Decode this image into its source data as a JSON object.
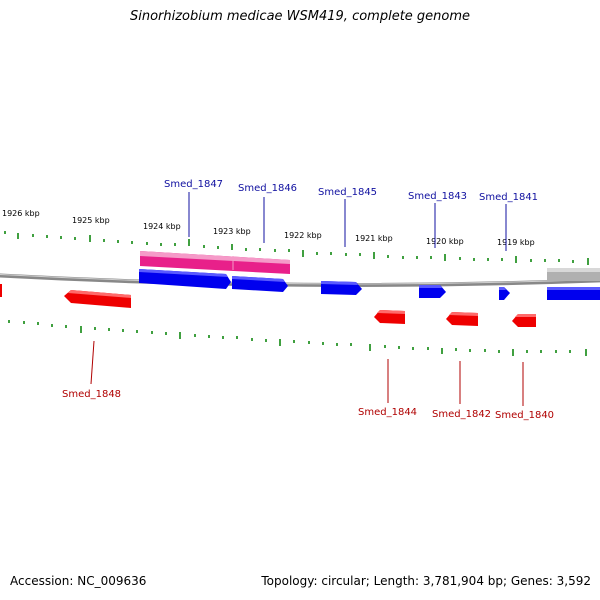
{
  "title": "Sinorhizobium medicae WSM419, complete genome",
  "footer": {
    "accession": "Accession: NC_009636",
    "summary": "Topology: circular; Length: 3,781,904 bp; Genes: 3,592"
  },
  "colors": {
    "forward_gene": "#0000ee",
    "reverse_gene": "#ee0000",
    "highlight": "#ee2288",
    "backbone": "#888888",
    "tick": "#008000",
    "forward_label": "#1010a0",
    "reverse_label": "#b00000",
    "other_feature": "#aaaaaa"
  },
  "scale_labels": [
    "1926 kbp",
    "1925 kbp",
    "1924 kbp",
    "1923 kbp",
    "1922 kbp",
    "1921 kbp",
    "1920 kbp",
    "1919 kbp"
  ],
  "forward_genes": [
    {
      "label": "Smed_1847"
    },
    {
      "label": "Smed_1846"
    },
    {
      "label": "Smed_1845"
    },
    {
      "label": "Smed_1843"
    },
    {
      "label": "Smed_1841"
    }
  ],
  "reverse_genes": [
    {
      "label": "Smed_1848"
    },
    {
      "label": "Smed_1844"
    },
    {
      "label": "Smed_1842"
    },
    {
      "label": "Smed_1840"
    }
  ]
}
